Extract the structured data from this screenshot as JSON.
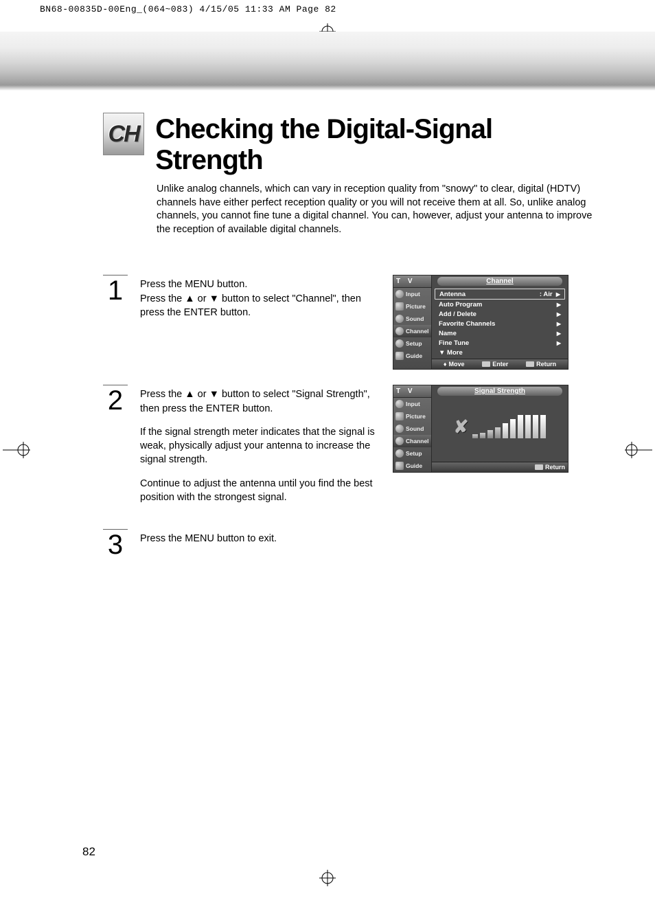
{
  "print_header": "BN68-00835D-00Eng_(064~083)  4/15/05  11:33 AM  Page 82",
  "badge": "CH",
  "title": "Checking the Digital-Signal Strength",
  "intro": "Unlike analog channels, which can vary in reception quality from \"snowy\" to clear, digital (HDTV) channels have either perfect reception quality or you will not receive them at all. So, unlike analog channels, you cannot fine tune a digital channel. You can, however, adjust your antenna to improve the reception of available digital channels.",
  "steps": [
    {
      "num": "1",
      "paras": [
        "Press the MENU button.\nPress the ▲ or ▼ button to select \"Channel\", then press the ENTER button."
      ]
    },
    {
      "num": "2",
      "paras": [
        "Press the ▲ or ▼ button to select \"Signal Strength\", then press the ENTER button.",
        "If the signal strength meter indicates that the signal is weak, physically adjust your antenna to increase the signal strength.",
        "Continue to adjust the antenna until you find the best position with the strongest signal."
      ]
    },
    {
      "num": "3",
      "paras": [
        "Press the MENU button to exit."
      ]
    }
  ],
  "osd1": {
    "tv": "T V",
    "title": "Channel",
    "nav": [
      "Input",
      "Picture",
      "Sound",
      "Channel",
      "Setup",
      "Guide"
    ],
    "selected_nav": "Channel",
    "rows": [
      {
        "label": "Antenna",
        "value": ": Air",
        "boxed": true
      },
      {
        "label": "Auto Program",
        "value": ""
      },
      {
        "label": "Add / Delete",
        "value": ""
      },
      {
        "label": "Favorite Channels",
        "value": ""
      },
      {
        "label": "Name",
        "value": ""
      },
      {
        "label": "Fine Tune",
        "value": ""
      },
      {
        "label": "▼ More",
        "value": "",
        "noarrow": true
      }
    ],
    "footer": [
      {
        "icon": "updown",
        "label": "Move"
      },
      {
        "icon": "enter",
        "label": "Enter"
      },
      {
        "icon": "menu",
        "label": "Return"
      }
    ]
  },
  "osd2": {
    "tv": "T V",
    "title": "Signal Strength",
    "nav": [
      "Input",
      "Picture",
      "Sound",
      "Channel",
      "Setup",
      "Guide"
    ],
    "selected_nav": "Channel",
    "bars": [
      6,
      8,
      12,
      16,
      22,
      28,
      34,
      34,
      34,
      34
    ],
    "short_count": 4,
    "footer": [
      {
        "icon": "menu",
        "label": "Return"
      }
    ]
  },
  "page_number": "82",
  "colors": {
    "osd_bg": "#4a4a4a",
    "osd_nav_bg_top": "#6f6f6f",
    "osd_border": "#2a2a2a",
    "text": "#000000",
    "osd_text": "#ffffff"
  }
}
